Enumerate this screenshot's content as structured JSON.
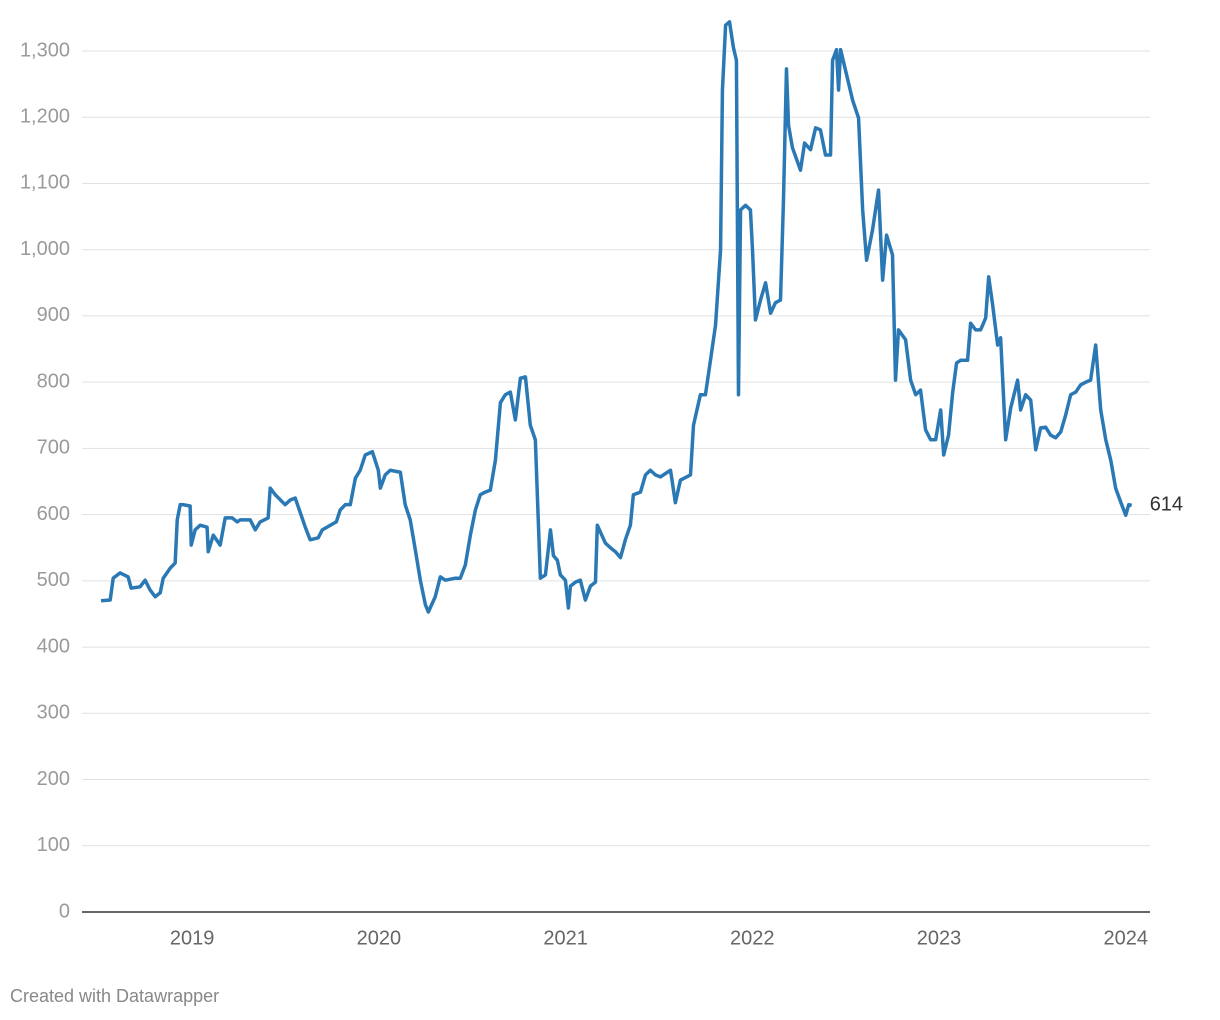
{
  "chart_data": {
    "type": "line",
    "x": [
      2018.512,
      2018.561,
      2018.577,
      2018.614,
      2018.657,
      2018.673,
      2018.721,
      2018.748,
      2018.775,
      2018.802,
      2018.829,
      2018.845,
      2018.882,
      2018.909,
      2018.92,
      2018.936,
      2018.952,
      2018.989,
      2018.995,
      2019.016,
      2019.043,
      2019.08,
      2019.086,
      2019.113,
      2019.15,
      2019.177,
      2019.214,
      2019.241,
      2019.257,
      2019.311,
      2019.338,
      2019.364,
      2019.407,
      2019.418,
      2019.445,
      2019.498,
      2019.525,
      2019.552,
      2019.606,
      2019.632,
      2019.675,
      2019.697,
      2019.74,
      2019.772,
      2019.793,
      2019.82,
      2019.847,
      2019.874,
      2019.9,
      2019.927,
      2019.965,
      2019.997,
      2020.008,
      2020.034,
      2020.061,
      2020.115,
      2020.141,
      2020.168,
      2020.195,
      2020.222,
      2020.249,
      2020.265,
      2020.302,
      2020.329,
      2020.356,
      2020.409,
      2020.436,
      2020.463,
      2020.49,
      2020.517,
      2020.543,
      2020.57,
      2020.597,
      2020.624,
      2020.651,
      2020.677,
      2020.704,
      2020.731,
      2020.758,
      2020.785,
      2020.811,
      2020.838,
      2020.865,
      2020.892,
      2020.919,
      2020.935,
      2020.956,
      2020.972,
      2020.999,
      2021.015,
      2021.026,
      2021.053,
      2021.079,
      2021.106,
      2021.133,
      2021.16,
      2021.17,
      2021.213,
      2021.24,
      2021.267,
      2021.294,
      2021.32,
      2021.347,
      2021.363,
      2021.401,
      2021.428,
      2021.454,
      2021.481,
      2021.508,
      2021.562,
      2021.588,
      2021.615,
      2021.669,
      2021.685,
      2021.722,
      2021.749,
      2021.776,
      2021.803,
      2021.83,
      2021.84,
      2021.857,
      2021.878,
      2021.899,
      2021.915,
      2021.926,
      2021.937,
      2021.964,
      2021.99,
      2022.001,
      2022.017,
      2022.044,
      2022.071,
      2022.098,
      2022.124,
      2022.151,
      2022.167,
      2022.183,
      2022.194,
      2022.215,
      2022.258,
      2022.28,
      2022.312,
      2022.339,
      2022.365,
      2022.392,
      2022.419,
      2022.43,
      2022.451,
      2022.462,
      2022.473,
      2022.505,
      2022.537,
      2022.569,
      2022.591,
      2022.612,
      2022.644,
      2022.676,
      2022.698,
      2022.719,
      2022.751,
      2022.767,
      2022.783,
      2022.821,
      2022.848,
      2022.875,
      2022.901,
      2022.928,
      2022.955,
      2022.982,
      2023.009,
      2023.025,
      2023.051,
      2023.073,
      2023.094,
      2023.116,
      2023.153,
      2023.169,
      2023.196,
      2023.223,
      2023.25,
      2023.266,
      2023.287,
      2023.314,
      2023.33,
      2023.357,
      2023.384,
      2023.421,
      2023.437,
      2023.464,
      2023.491,
      2023.518,
      2023.544,
      2023.571,
      2023.598,
      2023.625,
      2023.652,
      2023.678,
      2023.705,
      2023.732,
      2023.759,
      2023.786,
      2023.812,
      2023.839,
      2023.866,
      2023.893,
      2023.92,
      2023.946,
      2023.973,
      2024.0,
      2024.016,
      2024.032
    ],
    "values": [
      470,
      471,
      504,
      512,
      506,
      489,
      491,
      501,
      486,
      476,
      482,
      504,
      519,
      527,
      592,
      615,
      615,
      613,
      554,
      577,
      584,
      581,
      544,
      569,
      554,
      595,
      595,
      589,
      592,
      592,
      577,
      589,
      595,
      640,
      630,
      615,
      622,
      625,
      581,
      562,
      565,
      577,
      584,
      589,
      607,
      615,
      615,
      655,
      667,
      690,
      695,
      667,
      640,
      660,
      667,
      664,
      615,
      592,
      547,
      501,
      464,
      453,
      476,
      506,
      501,
      504,
      504,
      524,
      569,
      607,
      630,
      634,
      637,
      682,
      769,
      781,
      785,
      743,
      806,
      808,
      735,
      713,
      504,
      509,
      577,
      538,
      531,
      509,
      501,
      459,
      492,
      498,
      501,
      471,
      492,
      498,
      584,
      557,
      550,
      544,
      535,
      562,
      584,
      630,
      634,
      660,
      667,
      660,
      657,
      667,
      618,
      652,
      660,
      735,
      781,
      781,
      833,
      886,
      1000,
      1241,
      1339,
      1344,
      1305,
      1286,
      781,
      1060,
      1067,
      1060,
      1000,
      894,
      924,
      950,
      904,
      920,
      924,
      1075,
      1273,
      1188,
      1154,
      1120,
      1161,
      1151,
      1184,
      1181,
      1143,
      1143,
      1286,
      1302,
      1241,
      1302,
      1264,
      1226,
      1199,
      1060,
      984,
      1030,
      1090,
      954,
      1022,
      992,
      803,
      879,
      864,
      803,
      781,
      788,
      728,
      713,
      713,
      758,
      690,
      720,
      784,
      829,
      833,
      833,
      889,
      879,
      879,
      897,
      959,
      917,
      856,
      867,
      713,
      761,
      803,
      758,
      781,
      773,
      698,
      731,
      732,
      720,
      716,
      725,
      750,
      781,
      785,
      796,
      800,
      803,
      856,
      758,
      713,
      682,
      640,
      619,
      599,
      615,
      614
    ],
    "color": "#2a79b5",
    "xlim": [
      2018.41,
      2024.13
    ],
    "xticks": [
      2019,
      2020,
      2021,
      2022,
      2023,
      2024
    ],
    "ylim": [
      0,
      1300
    ],
    "yticks": [
      0,
      100,
      200,
      300,
      400,
      500,
      600,
      700,
      800,
      900,
      {
        "value": 1000,
        "label": "1,000"
      },
      {
        "value": 1100,
        "label": "1,100"
      },
      {
        "value": 1200,
        "label": "1,200"
      },
      {
        "value": 1300,
        "label": "1,300"
      }
    ],
    "grid": true,
    "credit": "Created with Datawrapper"
  }
}
